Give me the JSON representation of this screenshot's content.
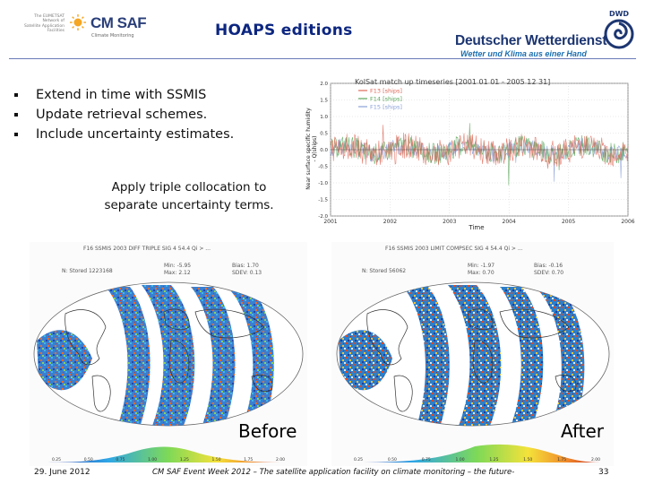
{
  "header": {
    "title": "HOAPS editions",
    "eumetsat_lines": [
      "The EUMETSAT",
      "Network of",
      "Satellite Application",
      "Facilities"
    ],
    "cmsaf_name": "CM SAF",
    "cmsaf_sub": "Climate Monitoring",
    "dwd_name": "Deutscher Wetterdienst",
    "dwd_subtitle": "Wetter und Klima aus einer Hand",
    "dwd_badge": "DWD"
  },
  "bullets": [
    "Extend in time with SSMIS",
    "Update retrieval schemes.",
    "Include uncertainty estimates."
  ],
  "triple_note": {
    "line1": "Apply triple collocation to",
    "line2": "separate uncertainty terms."
  },
  "timeseries_chart": {
    "title": "KolSat match up timeseries  [2001 01 01 - 2005 12 31]",
    "ylabel_line1": "Near surface specific humidity",
    "ylabel_line2": "- Q(ships)",
    "xlabel": "Time",
    "legend": [
      "F13 [ships]",
      "F14 [ships]",
      "F15 [ships]"
    ],
    "colors": {
      "f13": "#e06a5a",
      "f14": "#5aa65a",
      "f15": "#8aa0d8"
    },
    "x_ticks": [
      "2001",
      "2002",
      "2003",
      "2004",
      "2005",
      "2006"
    ],
    "y_ticks": [
      "2.0",
      "1.5",
      "1.0",
      "0.5",
      "0.0",
      "-0.5",
      "-1.0",
      "-1.5",
      "-2.0"
    ]
  },
  "maps": {
    "before": {
      "label": "Before",
      "header_line1": "F16 SSMIS 2003 DIFF TRIPLE SIG 4 54.4 Qi > ...",
      "stat_n": "N: Stored  1223168",
      "stat_min": "Min:  -5.95",
      "stat_max": "Max:   2.12",
      "stat_bias": "Bias:  1.70",
      "stat_sdev": "SDEV:  0.13"
    },
    "after": {
      "label": "After",
      "header_line1": "F16 SSMIS 2003 LIMIT COMPSEC SIG 4 54.4 Qi > ...",
      "stat_n": "N: Stored  56062",
      "stat_min": "Min:  -1.97",
      "stat_max": "Max:   0.70",
      "stat_bias": "Bias:  -0.16",
      "stat_sdev": "SDEV:  0.70"
    },
    "colorbar_ticks": [
      "0.25",
      "0.50",
      "0.75",
      "1.00",
      "1.25",
      "1.50",
      "1.75",
      "2.00"
    ]
  },
  "footer": {
    "date": "29. June 2012",
    "event": "CM SAF Event Week 2012 – The satellite application facility on climate monitoring – the future-",
    "page": "33"
  }
}
